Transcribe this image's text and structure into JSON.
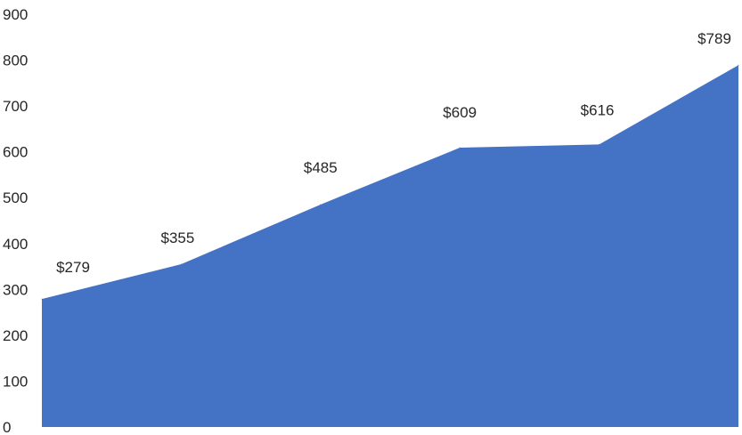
{
  "chart_data": {
    "type": "area",
    "title": "",
    "xlabel": "",
    "ylabel": "",
    "ylim": [
      0,
      900
    ],
    "y_ticks": [
      "0",
      "100",
      "200",
      "300",
      "400",
      "500",
      "600",
      "700",
      "800",
      "900"
    ],
    "x_tick_labels_shown": false,
    "grid": false,
    "legend": "none",
    "series": [
      {
        "values": [
          279,
          355,
          485,
          609,
          616,
          789
        ],
        "labels": [
          "$279",
          "$355",
          "$485",
          "$609",
          "$616",
          "$789"
        ],
        "color": "#4472C4"
      }
    ]
  }
}
